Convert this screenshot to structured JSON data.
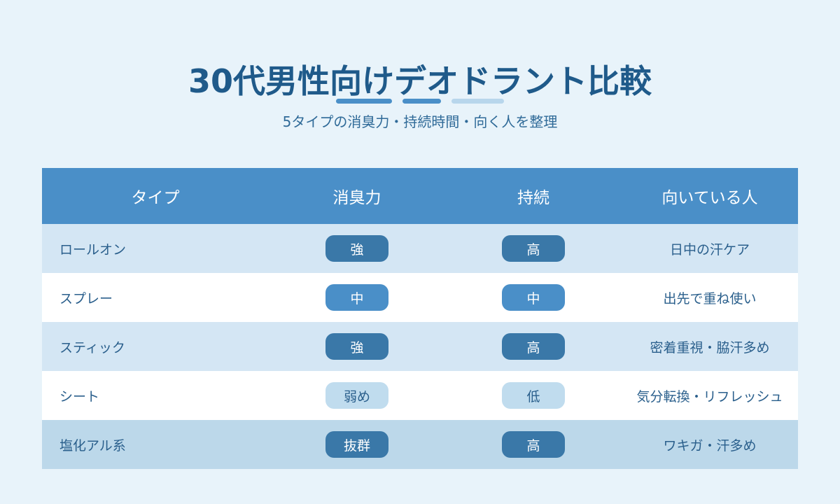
{
  "header": {
    "title": "30代男性向けデオドラント比較",
    "subtitle": "5タイプの消臭力・持続時間・向く人を整理"
  },
  "table": {
    "columns": [
      "タイプ",
      "消臭力",
      "持続",
      "向いている人"
    ],
    "rows": [
      [
        "ロールオン",
        "強",
        "高",
        "日中の汗ケア"
      ],
      [
        "スプレー",
        "中",
        "中",
        "出先で重ね使い"
      ],
      [
        "スティック",
        "強",
        "高",
        "密着重視・脇汗多め"
      ],
      [
        "シート",
        "弱め",
        "低",
        "気分転換・リフレッシュ"
      ],
      [
        "塩化アル系",
        "抜群",
        "高",
        "ワキガ・汗多め"
      ]
    ],
    "row_colors": [
      "#d4e6f4",
      "#ffffff",
      "#d4e6f4",
      "#ffffff",
      "#bcd8ea"
    ],
    "badge_colors": [
      [
        "#3a78a8",
        "#3a78a8"
      ],
      [
        "#4a8fc8",
        "#4a8fc8"
      ],
      [
        "#3a78a8",
        "#3a78a8"
      ],
      [
        "#c0dcee",
        "#c0dcee"
      ],
      [
        "#3a78a8",
        "#3a78a8"
      ]
    ]
  }
}
